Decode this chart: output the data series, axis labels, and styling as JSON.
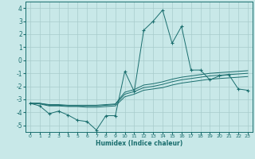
{
  "xlabel": "Humidex (Indice chaleur)",
  "bg_color": "#c8e8e8",
  "grid_color": "#a8cccc",
  "line_color": "#1a6e6e",
  "xlim": [
    -0.5,
    23.5
  ],
  "ylim": [
    -5.5,
    4.5
  ],
  "xticks": [
    0,
    1,
    2,
    3,
    4,
    5,
    6,
    7,
    8,
    9,
    10,
    11,
    12,
    13,
    14,
    15,
    16,
    17,
    18,
    19,
    20,
    21,
    22,
    23
  ],
  "yticks": [
    -5,
    -4,
    -3,
    -2,
    -1,
    0,
    1,
    2,
    3,
    4
  ],
  "series": {
    "main": {
      "x": [
        0,
        1,
        2,
        3,
        4,
        5,
        6,
        7,
        8,
        9,
        10,
        11,
        12,
        13,
        14,
        15,
        16,
        17,
        18,
        19,
        20,
        21,
        22,
        23
      ],
      "y": [
        -3.3,
        -3.5,
        -4.1,
        -3.9,
        -4.2,
        -4.6,
        -4.7,
        -5.35,
        -4.25,
        -4.25,
        -0.85,
        -2.4,
        2.3,
        3.0,
        3.85,
        1.3,
        2.6,
        -0.75,
        -0.75,
        -1.5,
        -1.2,
        -1.1,
        -2.2,
        -2.3
      ]
    },
    "line1": {
      "x": [
        0,
        1,
        2,
        3,
        4,
        5,
        6,
        7,
        8,
        9,
        10,
        11,
        12,
        13,
        14,
        15,
        16,
        17,
        18,
        19,
        20,
        21,
        22,
        23
      ],
      "y": [
        -3.3,
        -3.35,
        -3.5,
        -3.5,
        -3.55,
        -3.55,
        -3.6,
        -3.6,
        -3.55,
        -3.5,
        -2.8,
        -2.6,
        -2.3,
        -2.2,
        -2.1,
        -1.9,
        -1.75,
        -1.65,
        -1.55,
        -1.45,
        -1.4,
        -1.35,
        -1.3,
        -1.25
      ]
    },
    "line2": {
      "x": [
        0,
        1,
        2,
        3,
        4,
        5,
        6,
        7,
        8,
        9,
        10,
        11,
        12,
        13,
        14,
        15,
        16,
        17,
        18,
        19,
        20,
        21,
        22,
        23
      ],
      "y": [
        -3.3,
        -3.3,
        -3.45,
        -3.45,
        -3.5,
        -3.5,
        -3.5,
        -3.5,
        -3.45,
        -3.4,
        -2.6,
        -2.4,
        -2.1,
        -2.0,
        -1.85,
        -1.65,
        -1.5,
        -1.4,
        -1.3,
        -1.2,
        -1.15,
        -1.1,
        -1.05,
        -1.0
      ]
    },
    "line3": {
      "x": [
        0,
        1,
        2,
        3,
        4,
        5,
        6,
        7,
        8,
        9,
        10,
        11,
        12,
        13,
        14,
        15,
        16,
        17,
        18,
        19,
        20,
        21,
        22,
        23
      ],
      "y": [
        -3.3,
        -3.3,
        -3.4,
        -3.4,
        -3.45,
        -3.45,
        -3.45,
        -3.45,
        -3.4,
        -3.35,
        -2.45,
        -2.25,
        -1.9,
        -1.8,
        -1.65,
        -1.45,
        -1.3,
        -1.2,
        -1.1,
        -1.0,
        -0.95,
        -0.9,
        -0.85,
        -0.8
      ]
    }
  }
}
